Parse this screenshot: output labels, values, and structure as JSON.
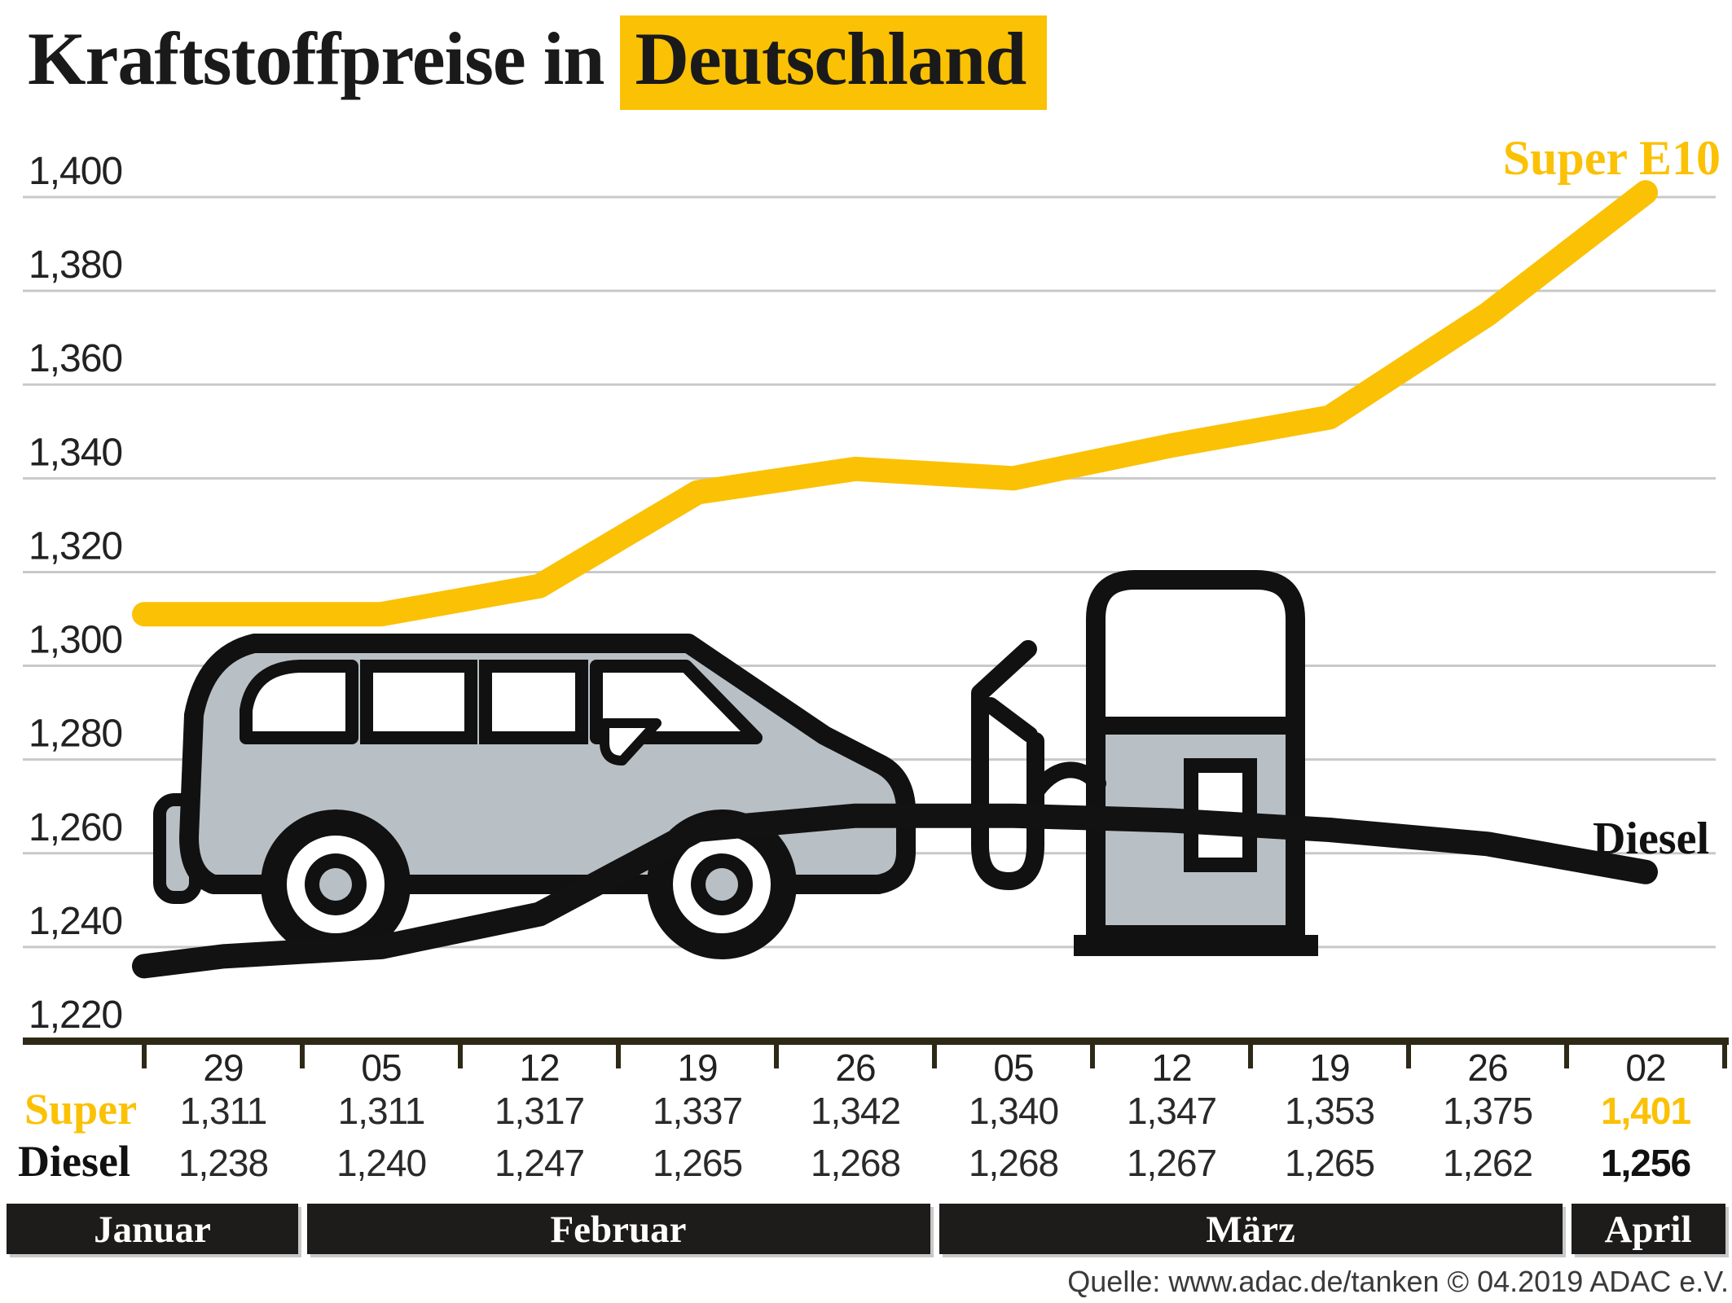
{
  "title": {
    "prefix": "Kraftstoffpreise in",
    "highlight": "Deutschland"
  },
  "series_labels": {
    "super": "Super E10",
    "diesel": "Diesel"
  },
  "colors": {
    "yellow": "#FBC105",
    "diesel_line": "#121212",
    "grid": "#C9C9C9",
    "axis": "#2E2917",
    "month_band": "#1D1C1A",
    "illustration_gray": "#B9C0C5",
    "title_ink": "#1A1A1A"
  },
  "chart_data": {
    "type": "line",
    "title": "Kraftstoffpreise in Deutschland",
    "x_labels": [
      "29",
      "05",
      "12",
      "19",
      "26",
      "05",
      "12",
      "19",
      "26",
      "02"
    ],
    "months": [
      {
        "label": "Januar",
        "start_index": 0,
        "end_index": 0
      },
      {
        "label": "Februar",
        "start_index": 1,
        "end_index": 4
      },
      {
        "label": "März",
        "start_index": 5,
        "end_index": 8
      },
      {
        "label": "April",
        "start_index": 9,
        "end_index": 9
      }
    ],
    "y_ticks": [
      "1,400",
      "1,380",
      "1,360",
      "1,340",
      "1,320",
      "1,300",
      "1,280",
      "1,260",
      "1,240",
      "1,220"
    ],
    "ylim": [
      1220,
      1400
    ],
    "grid": true,
    "legend_position": "inline-right",
    "series": [
      {
        "name": "Super E10",
        "values": [
          1311,
          1311,
          1317,
          1337,
          1342,
          1340,
          1347,
          1353,
          1375,
          1401
        ],
        "color": "#FBC105"
      },
      {
        "name": "Diesel",
        "values": [
          1238,
          1240,
          1247,
          1265,
          1268,
          1268,
          1267,
          1265,
          1262,
          1256
        ],
        "color": "#121212"
      }
    ]
  },
  "table": {
    "dates": [
      "29",
      "05",
      "12",
      "19",
      "26",
      "05",
      "12",
      "19",
      "26",
      "02"
    ],
    "rows": [
      {
        "label": "Super",
        "values": [
          "1,311",
          "1,311",
          "1,317",
          "1,337",
          "1,342",
          "1,340",
          "1,347",
          "1,353",
          "1,375",
          "1,401"
        ]
      },
      {
        "label": "Diesel",
        "values": [
          "1,238",
          "1,240",
          "1,247",
          "1,265",
          "1,268",
          "1,268",
          "1,267",
          "1,265",
          "1,262",
          "1,256"
        ]
      }
    ]
  },
  "months": [
    "Januar",
    "Februar",
    "März",
    "April"
  ],
  "source": "Quelle: www.adac.de/tanken   © 04.2019   ADAC e.V."
}
